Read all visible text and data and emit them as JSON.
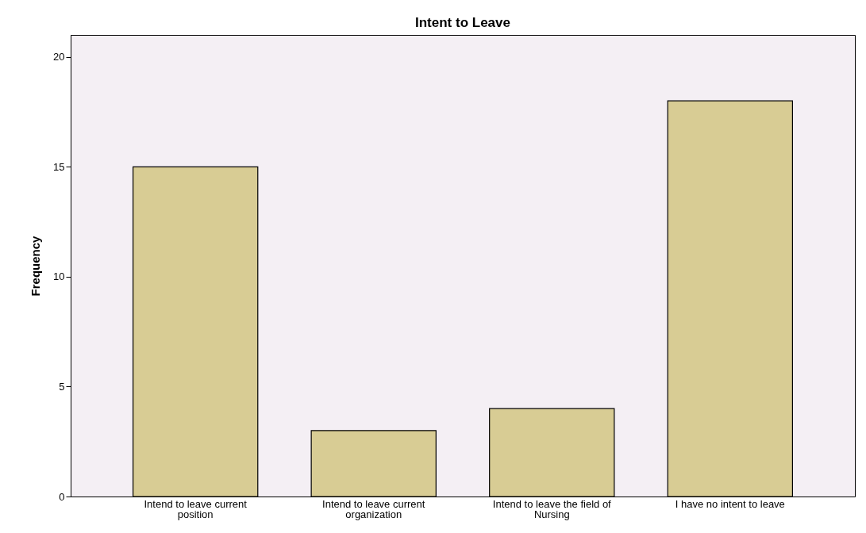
{
  "chart_data": {
    "type": "bar",
    "title": "Intent to Leave",
    "ylabel": "Frequency",
    "categories": [
      "Intend to leave current position",
      "Intend to leave current organization",
      "Intend to leave the field of Nursing",
      "I have no intent to leave"
    ],
    "values": [
      15,
      3,
      4,
      18
    ],
    "color": "#d8cc94",
    "ylim": [
      0,
      21
    ],
    "yticks": [
      0,
      5,
      10,
      15,
      20
    ],
    "grid": false
  }
}
